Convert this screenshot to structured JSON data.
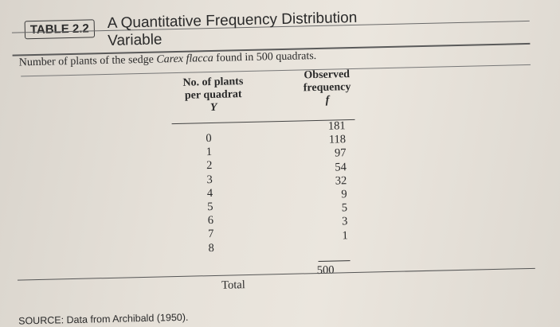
{
  "table": {
    "label": "TABLE 2.2",
    "title_line1": "A Quantitative Frequency Distribution",
    "title_line2": "Variable",
    "caption_pre": "Number of plants of the sedge ",
    "caption_species": "Carex flacca",
    "caption_post": " found in 500 quadrats.",
    "col1_header_line1": "No. of plants",
    "col1_header_line2": "per quadrat",
    "col1_symbol": "Y",
    "col2_header_line1": "Observed",
    "col2_header_line2": "frequency",
    "col2_symbol": "f",
    "rows": [
      {
        "y": "0",
        "f": "181"
      },
      {
        "y": "1",
        "f": "118"
      },
      {
        "y": "2",
        "f": "97"
      },
      {
        "y": "3",
        "f": "54"
      },
      {
        "y": "4",
        "f": "32"
      },
      {
        "y": "5",
        "f": "9"
      },
      {
        "y": "6",
        "f": "5"
      },
      {
        "y": "7",
        "f": "3"
      },
      {
        "y": "8",
        "f": "1"
      }
    ],
    "total_label": "Total",
    "total_value": "500",
    "source": "SOURCE: Data from Archibald (1950)."
  }
}
